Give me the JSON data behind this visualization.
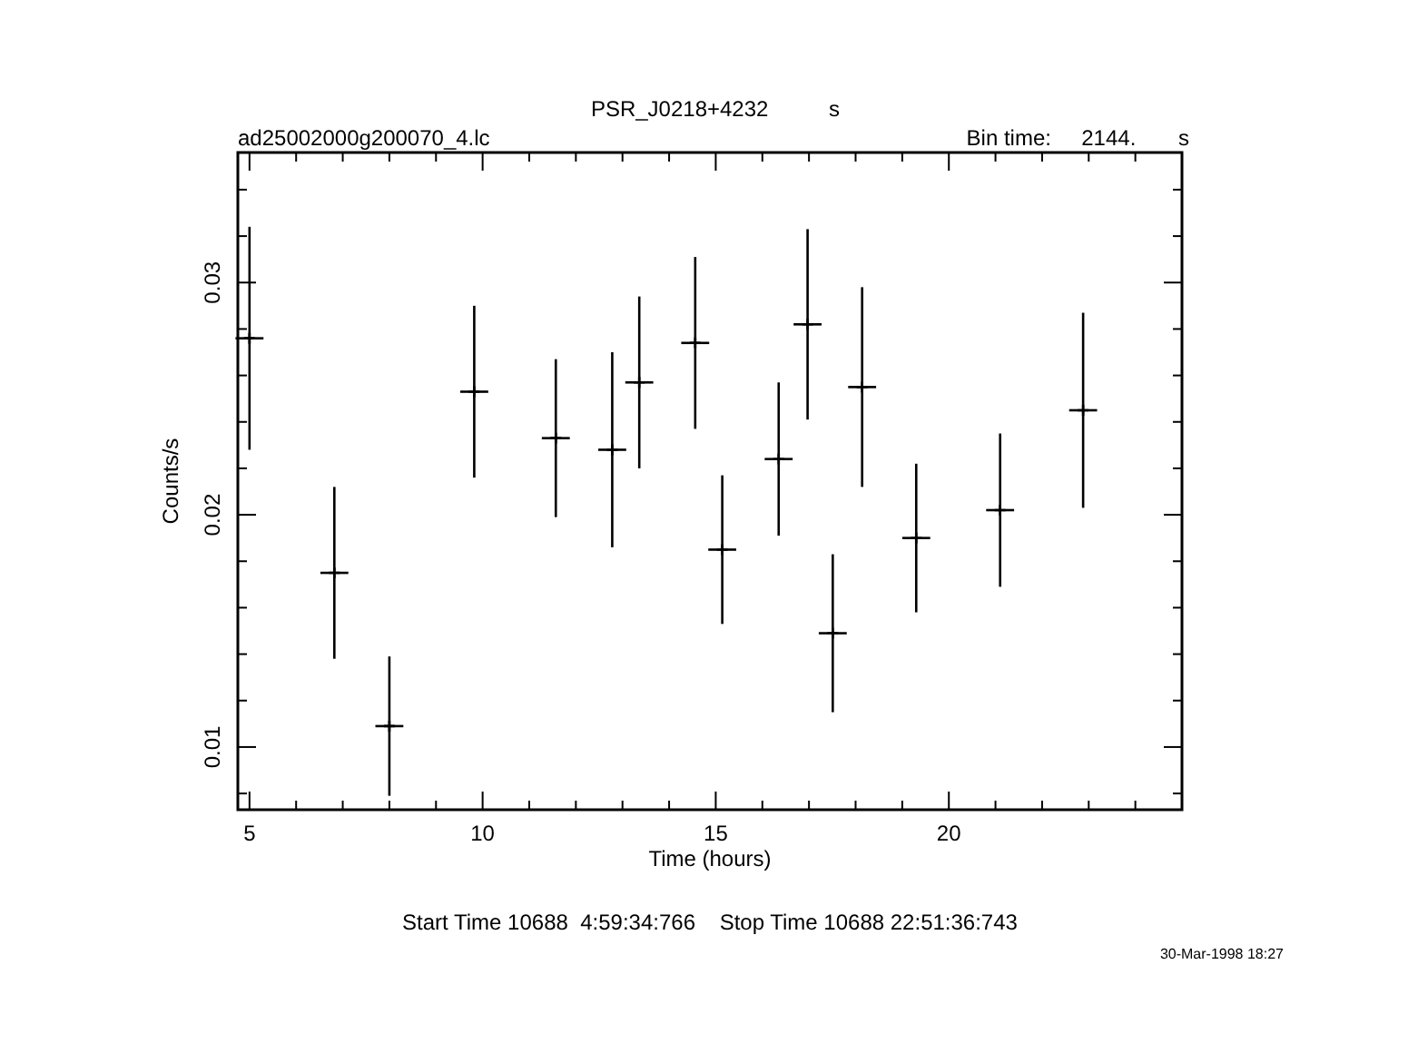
{
  "chart_data": {
    "type": "scatter",
    "title": "PSR_J0218+4232          s",
    "subtitle": "ad25002000g200070_4.lc",
    "xlabel": "Time (hours)",
    "ylabel": "Counts/s",
    "annotations": [
      "Bin time:     2144.       s",
      "Start Time 10688  4:59:34:766    Stop Time 10688 22:51:36:743",
      "30-Mar-1998 18:27"
    ],
    "x": [
      5.0,
      6.82,
      8.0,
      9.82,
      11.57,
      12.78,
      13.36,
      14.56,
      15.14,
      16.35,
      16.97,
      17.51,
      18.14,
      19.3,
      21.1,
      22.88
    ],
    "values": [
      0.0276,
      0.0175,
      0.0109,
      0.0253,
      0.0233,
      0.0228,
      0.0257,
      0.0274,
      0.0185,
      0.0224,
      0.0282,
      0.0149,
      0.0255,
      0.019,
      0.0202,
      0.0245
    ],
    "errors": [
      0.0048,
      0.0037,
      0.003,
      0.0037,
      0.0034,
      0.0042,
      0.0037,
      0.0037,
      0.0032,
      0.0033,
      0.0041,
      0.0034,
      0.0043,
      0.0032,
      0.0033,
      0.0042
    ],
    "xerrors": [
      0.3,
      0.3,
      0.3,
      0.3,
      0.3,
      0.3,
      0.3,
      0.3,
      0.3,
      0.3,
      0.3,
      0.3,
      0.3,
      0.3,
      0.3,
      0.3
    ],
    "color": "#000000",
    "marker": "cross",
    "grid": false,
    "xlim": [
      4.75,
      25
    ],
    "xticks": [
      5,
      {
        "value": 6,
        "label": null
      },
      {
        "value": 7,
        "label": null
      },
      {
        "value": 8,
        "label": null
      },
      {
        "value": 9,
        "label": null
      },
      10,
      {
        "value": 11,
        "label": null
      },
      {
        "value": 12,
        "label": null
      },
      {
        "value": 13,
        "label": null
      },
      {
        "value": 14,
        "label": null
      },
      15,
      {
        "value": 16,
        "label": null
      },
      {
        "value": 17,
        "label": null
      },
      {
        "value": 18,
        "label": null
      },
      {
        "value": 19,
        "label": null
      },
      20,
      {
        "value": 21,
        "label": null
      },
      {
        "value": 22,
        "label": null
      },
      {
        "value": 23,
        "label": null
      },
      {
        "value": 24,
        "label": null
      }
    ],
    "ylim": [
      0.0073,
      0.0356
    ],
    "yticks": [
      {
        "value": 0.008,
        "label": null
      },
      0.01,
      {
        "value": 0.012,
        "label": null
      },
      {
        "value": 0.014,
        "label": null
      },
      {
        "value": 0.016,
        "label": null
      },
      {
        "value": 0.018,
        "label": null
      },
      0.02,
      {
        "value": 0.022,
        "label": null
      },
      {
        "value": 0.024,
        "label": null
      },
      {
        "value": 0.026,
        "label": null
      },
      {
        "value": 0.028,
        "label": null
      },
      0.03,
      {
        "value": 0.032,
        "label": null
      },
      {
        "value": 0.034,
        "label": null
      }
    ]
  }
}
